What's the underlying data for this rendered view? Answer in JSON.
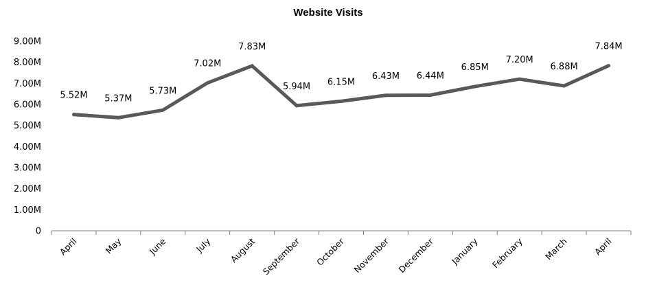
{
  "chart_data": {
    "type": "line",
    "title": "Website Visits",
    "xlabel": "",
    "ylabel": "",
    "ylim": [
      0,
      9
    ],
    "grid": false,
    "legend": "none",
    "y_ticks": [
      "0",
      "1.00M",
      "2.00M",
      "3.00M",
      "4.00M",
      "5.00M",
      "6.00M",
      "7.00M",
      "8.00M",
      "9.00M"
    ],
    "categories": [
      "April",
      "May",
      "June",
      "July",
      "August",
      "September",
      "October",
      "November",
      "December",
      "January",
      "February",
      "March",
      "April"
    ],
    "series": [
      {
        "values": [
          5.52,
          5.37,
          5.73,
          7.02,
          7.83,
          5.94,
          6.15,
          6.43,
          6.44,
          6.85,
          7.2,
          6.88,
          7.84
        ],
        "labels": [
          "5.52M",
          "5.37M",
          "5.73M",
          "7.02M",
          "7.83M",
          "5.94M",
          "6.15M",
          "6.43M",
          "6.44M",
          "6.85M",
          "7.20M",
          "6.88M",
          "7.84M"
        ],
        "color": "#595959"
      }
    ],
    "axis_color": "#7f7f7f"
  }
}
